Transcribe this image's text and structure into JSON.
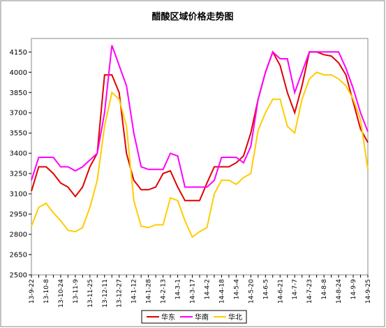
{
  "chart_data": {
    "type": "line",
    "title": "醋酸区域价格走势图",
    "categories": [
      "13-9-22",
      null,
      "13-10-8",
      null,
      "13-10-24",
      null,
      "13-11-9",
      null,
      "13-11-25",
      null,
      "13-12-11",
      null,
      "13-12-27",
      null,
      "14-1-12",
      null,
      "14-1-28",
      null,
      "14-2-13",
      null,
      "14-3-1",
      null,
      "14-3-17",
      null,
      "14-4-2",
      null,
      "14-4-18",
      null,
      "14-5-4",
      null,
      "14-5-20",
      null,
      "14-6-5",
      null,
      "14-6-21",
      null,
      "14-7-7",
      null,
      "14-7-23",
      null,
      "14-8-8",
      null,
      "14-8-24",
      null,
      "14-9-9",
      null,
      "14-9-25"
    ],
    "series": [
      {
        "name": "华东",
        "color": "#e00000",
        "values": [
          3120,
          3300,
          3300,
          3250,
          3180,
          3150,
          3080,
          3150,
          3300,
          3400,
          3980,
          3980,
          3850,
          3400,
          3200,
          3130,
          3130,
          3150,
          3250,
          3270,
          3150,
          3050,
          3050,
          3050,
          3180,
          3300,
          3300,
          3300,
          3330,
          3380,
          3550,
          3800,
          4000,
          4150,
          4050,
          3850,
          3700,
          3900,
          4150,
          4150,
          4130,
          4120,
          4070,
          3980,
          3780,
          3580,
          3480
        ]
      },
      {
        "name": "华南",
        "color": "#ff00ff",
        "values": [
          3200,
          3370,
          3370,
          3370,
          3300,
          3300,
          3270,
          3300,
          3350,
          3400,
          3700,
          4200,
          4050,
          3900,
          3550,
          3300,
          3280,
          3280,
          3280,
          3400,
          3380,
          3150,
          3150,
          3150,
          3150,
          3200,
          3370,
          3370,
          3370,
          3330,
          3450,
          3800,
          4000,
          4150,
          4100,
          4100,
          3850,
          4000,
          4150,
          4150,
          4150,
          4150,
          4150,
          4030,
          3880,
          3700,
          3560
        ]
      },
      {
        "name": "华北",
        "color": "#ffcc00",
        "values": [
          2860,
          3000,
          3030,
          2960,
          2900,
          2830,
          2820,
          2850,
          3000,
          3200,
          3600,
          3850,
          3800,
          3600,
          3050,
          2860,
          2850,
          2870,
          2870,
          3070,
          3050,
          2900,
          2780,
          2820,
          2850,
          3100,
          3200,
          3200,
          3170,
          3220,
          3250,
          3570,
          3700,
          3800,
          3800,
          3600,
          3550,
          3800,
          3950,
          4000,
          3980,
          3980,
          3950,
          3900,
          3800,
          3650,
          3280
        ]
      }
    ],
    "ylim": [
      2500,
      4250
    ],
    "yticks": [
      2500,
      2650,
      2800,
      2950,
      3100,
      3250,
      3400,
      3550,
      3700,
      3850,
      4000,
      4150
    ],
    "legend": "bottom"
  }
}
